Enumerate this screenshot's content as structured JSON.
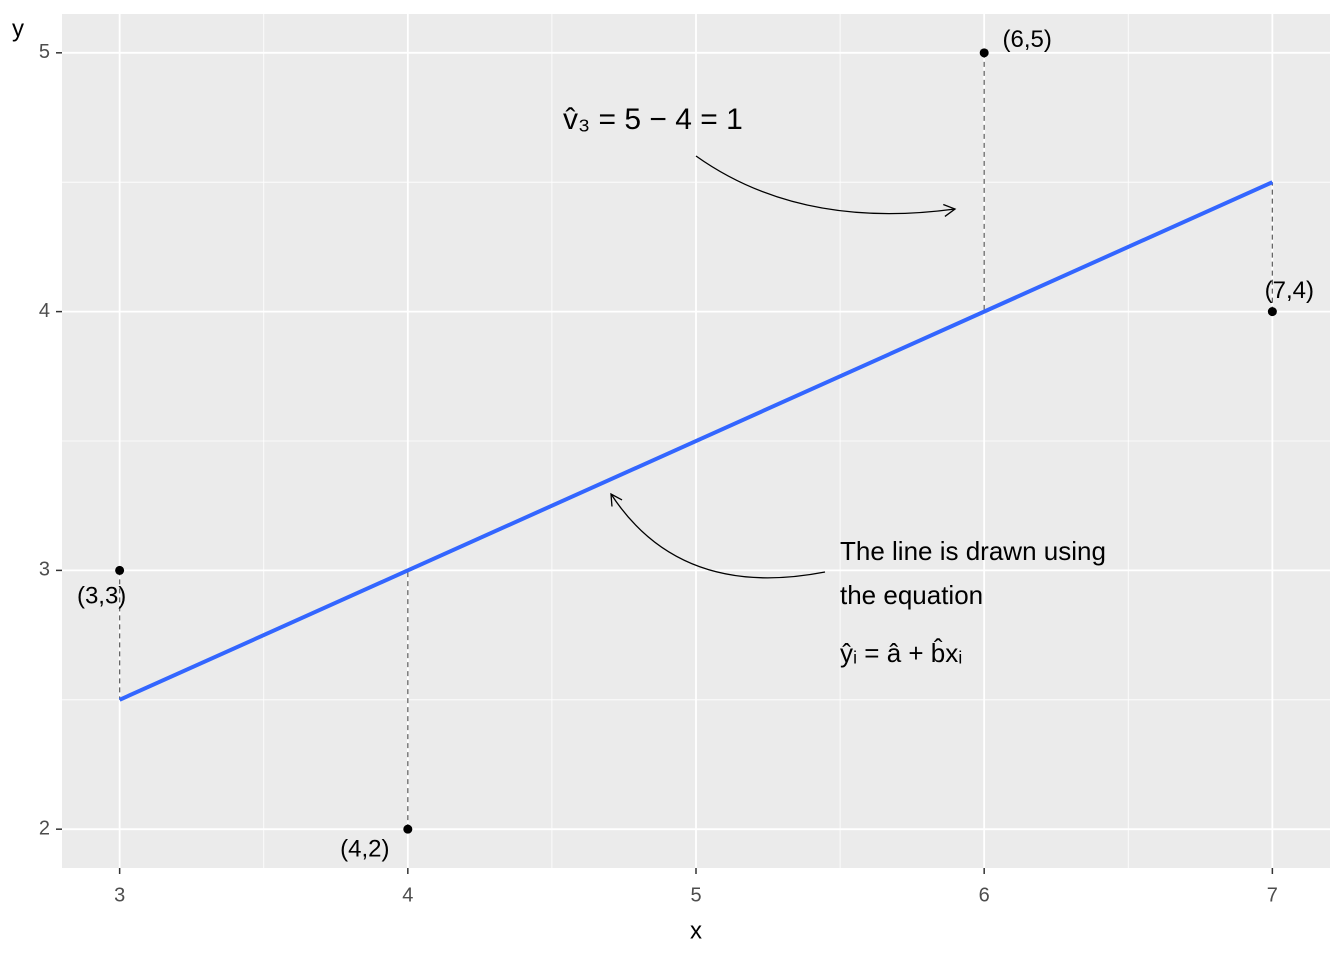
{
  "chart_data": {
    "type": "scatter",
    "x_label": "x",
    "y_label": "y",
    "xlim": [
      2.8,
      7.2
    ],
    "ylim": [
      1.85,
      5.15
    ],
    "xticks": [
      3,
      4,
      5,
      6,
      7
    ],
    "yticks": [
      2,
      3,
      4,
      5
    ],
    "x_minor_breaks": [
      3.5,
      4.5,
      5.5,
      6.5
    ],
    "y_minor_breaks": [
      2.5,
      3.5,
      4.5
    ],
    "grid": true,
    "points": {
      "x": [
        3,
        4,
        6,
        7
      ],
      "values": [
        3,
        2,
        5,
        4
      ],
      "labels": [
        "(3,3)",
        "(4,2)",
        "(6,5)",
        "(7,4)"
      ],
      "fitted": [
        2.5,
        3,
        4,
        4.5
      ],
      "color": "#000000"
    },
    "line": {
      "x": [
        3,
        7
      ],
      "values": [
        2.5,
        4.5
      ],
      "color": "#3366ff"
    },
    "annotations": [
      "v̂₃ = 5 − 4 = 1",
      "The line is drawn using",
      "the equation",
      "ŷᵢ = â + b̂xᵢ"
    ]
  }
}
